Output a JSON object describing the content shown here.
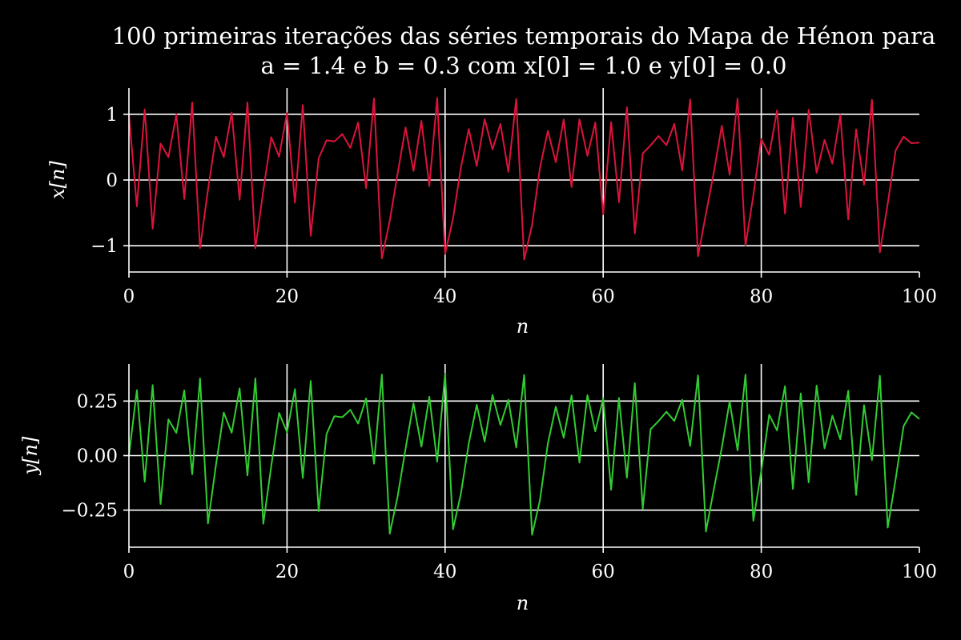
{
  "title": {
    "line1": "100 primeiras iterações das séries temporais do Mapa de Hénon para",
    "line2": "a = 1.4 e b = 0.3 com x[0] = 1.0 e y[0] = 0.0"
  },
  "colors": {
    "background": "#000000",
    "axes": "#ffffff",
    "grid": "#ffffff",
    "x_series": "#dc143c",
    "y_series": "#32cd32"
  },
  "chart_data": [
    {
      "type": "line",
      "xlabel": "n",
      "ylabel": "x[n]",
      "xlim": [
        0,
        100
      ],
      "ylim": [
        -1.4,
        1.4
      ],
      "grid": true,
      "x_ticks": [
        0,
        20,
        40,
        60,
        80,
        100
      ],
      "y_ticks": [
        -1,
        0,
        1
      ],
      "y_tick_labels": [
        "−1",
        "0",
        "1"
      ],
      "series": [
        {
          "color": "#dc143c",
          "values": [
            1.0,
            -0.4,
            1.076,
            -0.741,
            0.554,
            0.348,
            0.997,
            -0.287,
            1.18,
            -1.036,
            -0.149,
            0.658,
            0.349,
            1.027,
            -0.302,
            1.18,
            -1.04,
            -0.161,
            0.652,
            0.356,
            1.018,
            -0.344,
            1.14,
            -0.85,
            0.33,
            0.604,
            0.587,
            0.7,
            0.49,
            0.875,
            -0.125,
            1.241,
            -1.193,
            -0.62,
            0.104,
            0.799,
            0.137,
            0.9,
            -0.093,
            1.25,
            -1.126,
            -0.583,
            0.187,
            0.776,
            0.213,
            0.925,
            0.466,
            0.852,
            0.124,
            1.234,
            -1.211,
            -0.683,
            0.184,
            0.748,
            0.272,
            0.921,
            -0.106,
            0.923,
            0.369,
            0.873,
            -0.522,
            0.881,
            -0.339,
            1.106,
            -0.814,
            0.404,
            0.527,
            0.67,
            0.53,
            0.852,
            0.145,
            1.226,
            -1.16,
            -0.515,
            0.12,
            0.825,
            0.08,
            1.238,
            -0.997,
            -0.234,
            0.624,
            0.384,
            1.06,
            -0.51,
            0.95,
            -0.41,
            1.07,
            0.11,
            0.61,
            0.25,
            0.99,
            -0.6,
            0.77,
            -0.07,
            1.22,
            -1.1,
            -0.36,
            0.45,
            0.66,
            0.56,
            0.57
          ]
        }
      ]
    },
    {
      "type": "line",
      "xlabel": "n",
      "ylabel": "y[n]",
      "xlim": [
        0,
        100
      ],
      "ylim": [
        -0.42,
        0.42
      ],
      "grid": true,
      "x_ticks": [
        0,
        20,
        40,
        60,
        80,
        100
      ],
      "y_ticks": [
        -0.25,
        0.0,
        0.25
      ],
      "y_tick_labels": [
        "−0.25",
        "0.00",
        "0.25"
      ],
      "series": [
        {
          "color": "#32cd32",
          "values": [
            0.0,
            0.3,
            -0.12,
            0.323,
            -0.222,
            0.166,
            0.104,
            0.299,
            -0.086,
            0.354,
            -0.311,
            -0.045,
            0.197,
            0.105,
            0.308,
            -0.091,
            0.354,
            -0.312,
            -0.048,
            0.196,
            0.107,
            0.305,
            -0.103,
            0.342,
            -0.255,
            0.099,
            0.181,
            0.176,
            0.21,
            0.147,
            0.262,
            -0.037,
            0.372,
            -0.358,
            -0.186,
            0.031,
            0.24,
            0.041,
            0.27,
            -0.028,
            0.375,
            -0.338,
            -0.175,
            0.056,
            0.233,
            0.064,
            0.278,
            0.14,
            0.256,
            0.037,
            0.37,
            -0.363,
            -0.205,
            0.055,
            0.224,
            0.082,
            0.276,
            -0.032,
            0.277,
            0.111,
            0.262,
            -0.157,
            0.264,
            -0.102,
            0.332,
            -0.244,
            0.121,
            0.158,
            0.201,
            0.159,
            0.256,
            0.044,
            0.368,
            -0.348,
            -0.154,
            0.036,
            0.248,
            0.024,
            0.371,
            -0.299,
            -0.07,
            0.187,
            0.115,
            0.318,
            -0.153,
            0.285,
            -0.123,
            0.321,
            0.033,
            0.183,
            0.075,
            0.297,
            -0.18,
            0.231,
            -0.021,
            0.366,
            -0.33,
            -0.108,
            0.135,
            0.198,
            0.168
          ]
        }
      ]
    }
  ]
}
